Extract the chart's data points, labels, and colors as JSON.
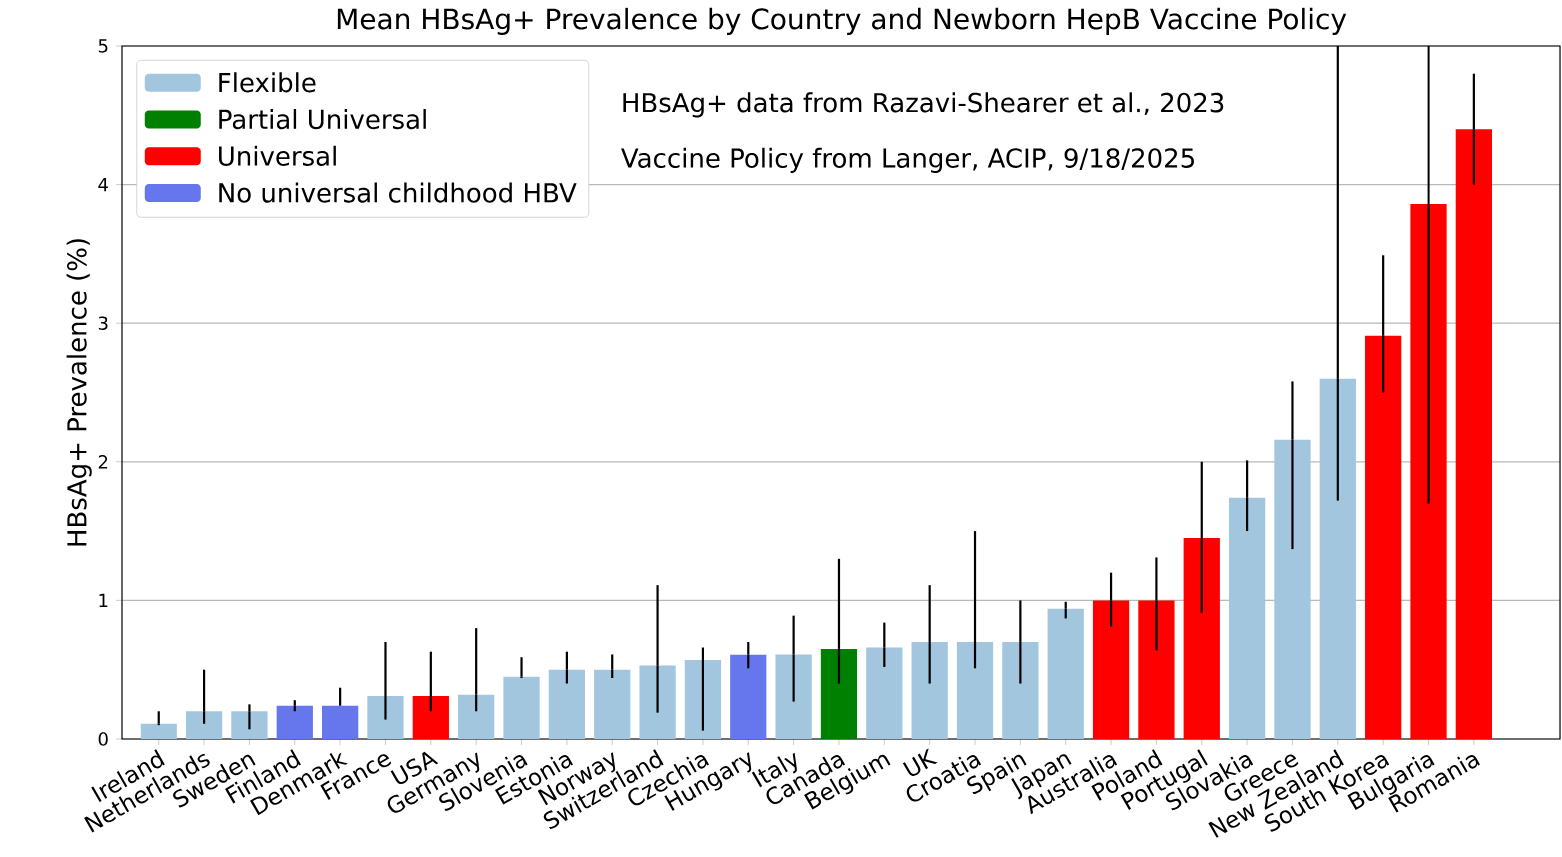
{
  "chart_data": {
    "type": "bar",
    "title": "Mean HBsAg+ Prevalence by Country and Newborn HepB Vaccine Policy",
    "ylabel": "HBsAg+ Prevalence (%)",
    "categories": [
      "Ireland",
      "Netherlands",
      "Sweden",
      "Finland",
      "Denmark",
      "France",
      "USA",
      "Germany",
      "Slovenia",
      "Estonia",
      "Norway",
      "Switzerland",
      "Czechia",
      "Hungary",
      "Italy",
      "Canada",
      "Belgium",
      "UK",
      "Croatia",
      "Spain",
      "Japan",
      "Australia",
      "Poland",
      "Portugal",
      "Slovakia",
      "Greece",
      "New Zealand",
      "South Korea",
      "Bulgaria",
      "Romania"
    ],
    "series": [
      {
        "name": "Flexible",
        "color": "#a3c6df",
        "values": [
          0.11,
          0.2,
          0.2,
          null,
          null,
          0.31,
          null,
          0.32,
          0.45,
          0.5,
          0.5,
          0.53,
          0.57,
          null,
          0.61,
          null,
          0.66,
          0.7,
          0.7,
          0.7,
          0.94,
          null,
          null,
          null,
          1.74,
          2.16,
          2.6,
          null,
          null,
          null
        ],
        "errors": [
          [
            0.1,
            0.2
          ],
          [
            0.11,
            0.5
          ],
          [
            0.07,
            0.25
          ],
          null,
          null,
          [
            0.14,
            0.7
          ],
          null,
          [
            0.2,
            0.8
          ],
          [
            0.44,
            0.59
          ],
          [
            0.4,
            0.63
          ],
          [
            0.44,
            0.61
          ],
          [
            0.19,
            1.11
          ],
          [
            0.06,
            0.66
          ],
          null,
          [
            0.27,
            0.89
          ],
          null,
          [
            0.52,
            0.84
          ],
          [
            0.4,
            1.11
          ],
          [
            0.51,
            1.5
          ],
          [
            0.4,
            1.0
          ],
          [
            0.87,
            0.99
          ],
          null,
          null,
          null,
          [
            1.5,
            2.01
          ],
          [
            1.37,
            2.58
          ],
          [
            1.72,
            5
          ],
          null,
          null,
          null
        ]
      },
      {
        "name": "Partial Universal",
        "color": "#008000",
        "values": [
          null,
          null,
          null,
          null,
          null,
          null,
          null,
          null,
          null,
          null,
          null,
          null,
          null,
          null,
          null,
          0.65,
          null,
          null,
          null,
          null,
          null,
          null,
          null,
          null,
          null,
          null,
          null,
          null,
          null,
          null
        ],
        "errors": [
          null,
          null,
          null,
          null,
          null,
          null,
          null,
          null,
          null,
          null,
          null,
          null,
          null,
          null,
          null,
          [
            0.4,
            1.3
          ],
          null,
          null,
          null,
          null,
          null,
          null,
          null,
          null,
          null,
          null,
          null,
          null,
          null,
          null
        ]
      },
      {
        "name": "Universal",
        "color": "#ff0000",
        "values": [
          null,
          null,
          null,
          null,
          null,
          null,
          0.31,
          null,
          null,
          null,
          null,
          null,
          null,
          null,
          null,
          null,
          null,
          null,
          null,
          null,
          null,
          1.0,
          1.0,
          1.45,
          null,
          null,
          null,
          2.91,
          3.86,
          4.4
        ],
        "errors": [
          null,
          null,
          null,
          null,
          null,
          null,
          [
            0.2,
            0.63
          ],
          null,
          null,
          null,
          null,
          null,
          null,
          null,
          null,
          null,
          null,
          null,
          null,
          null,
          null,
          [
            0.81,
            1.2
          ],
          [
            0.64,
            1.31
          ],
          [
            0.91,
            2.0
          ],
          null,
          null,
          null,
          [
            2.5,
            3.49
          ],
          [
            1.7,
            5
          ],
          [
            4.0,
            4.8
          ]
        ]
      },
      {
        "name": "No universal childhood HBV",
        "color": "#6677ee",
        "values": [
          null,
          null,
          null,
          0.24,
          0.24,
          null,
          null,
          null,
          null,
          null,
          null,
          null,
          null,
          0.61,
          null,
          null,
          null,
          null,
          null,
          null,
          null,
          null,
          null,
          null,
          null,
          null,
          null,
          null,
          null,
          null
        ],
        "errors": [
          null,
          null,
          null,
          [
            0.2,
            0.28
          ],
          [
            0.24,
            0.37
          ],
          null,
          null,
          null,
          null,
          null,
          null,
          null,
          null,
          [
            0.51,
            0.7
          ],
          null,
          null,
          null,
          null,
          null,
          null,
          null,
          null,
          null,
          null,
          null,
          null,
          null,
          null,
          null,
          null
        ]
      }
    ],
    "ylim": [
      0,
      5
    ],
    "yticks": [
      0,
      1,
      2,
      3,
      4,
      5
    ],
    "grid": "y",
    "legend": "top left",
    "annotations": [
      "HBsAg+ data from Razavi-Shearer et al., 2023",
      "Vaccine Policy from Langer, ACIP, 9/18/2025"
    ]
  }
}
